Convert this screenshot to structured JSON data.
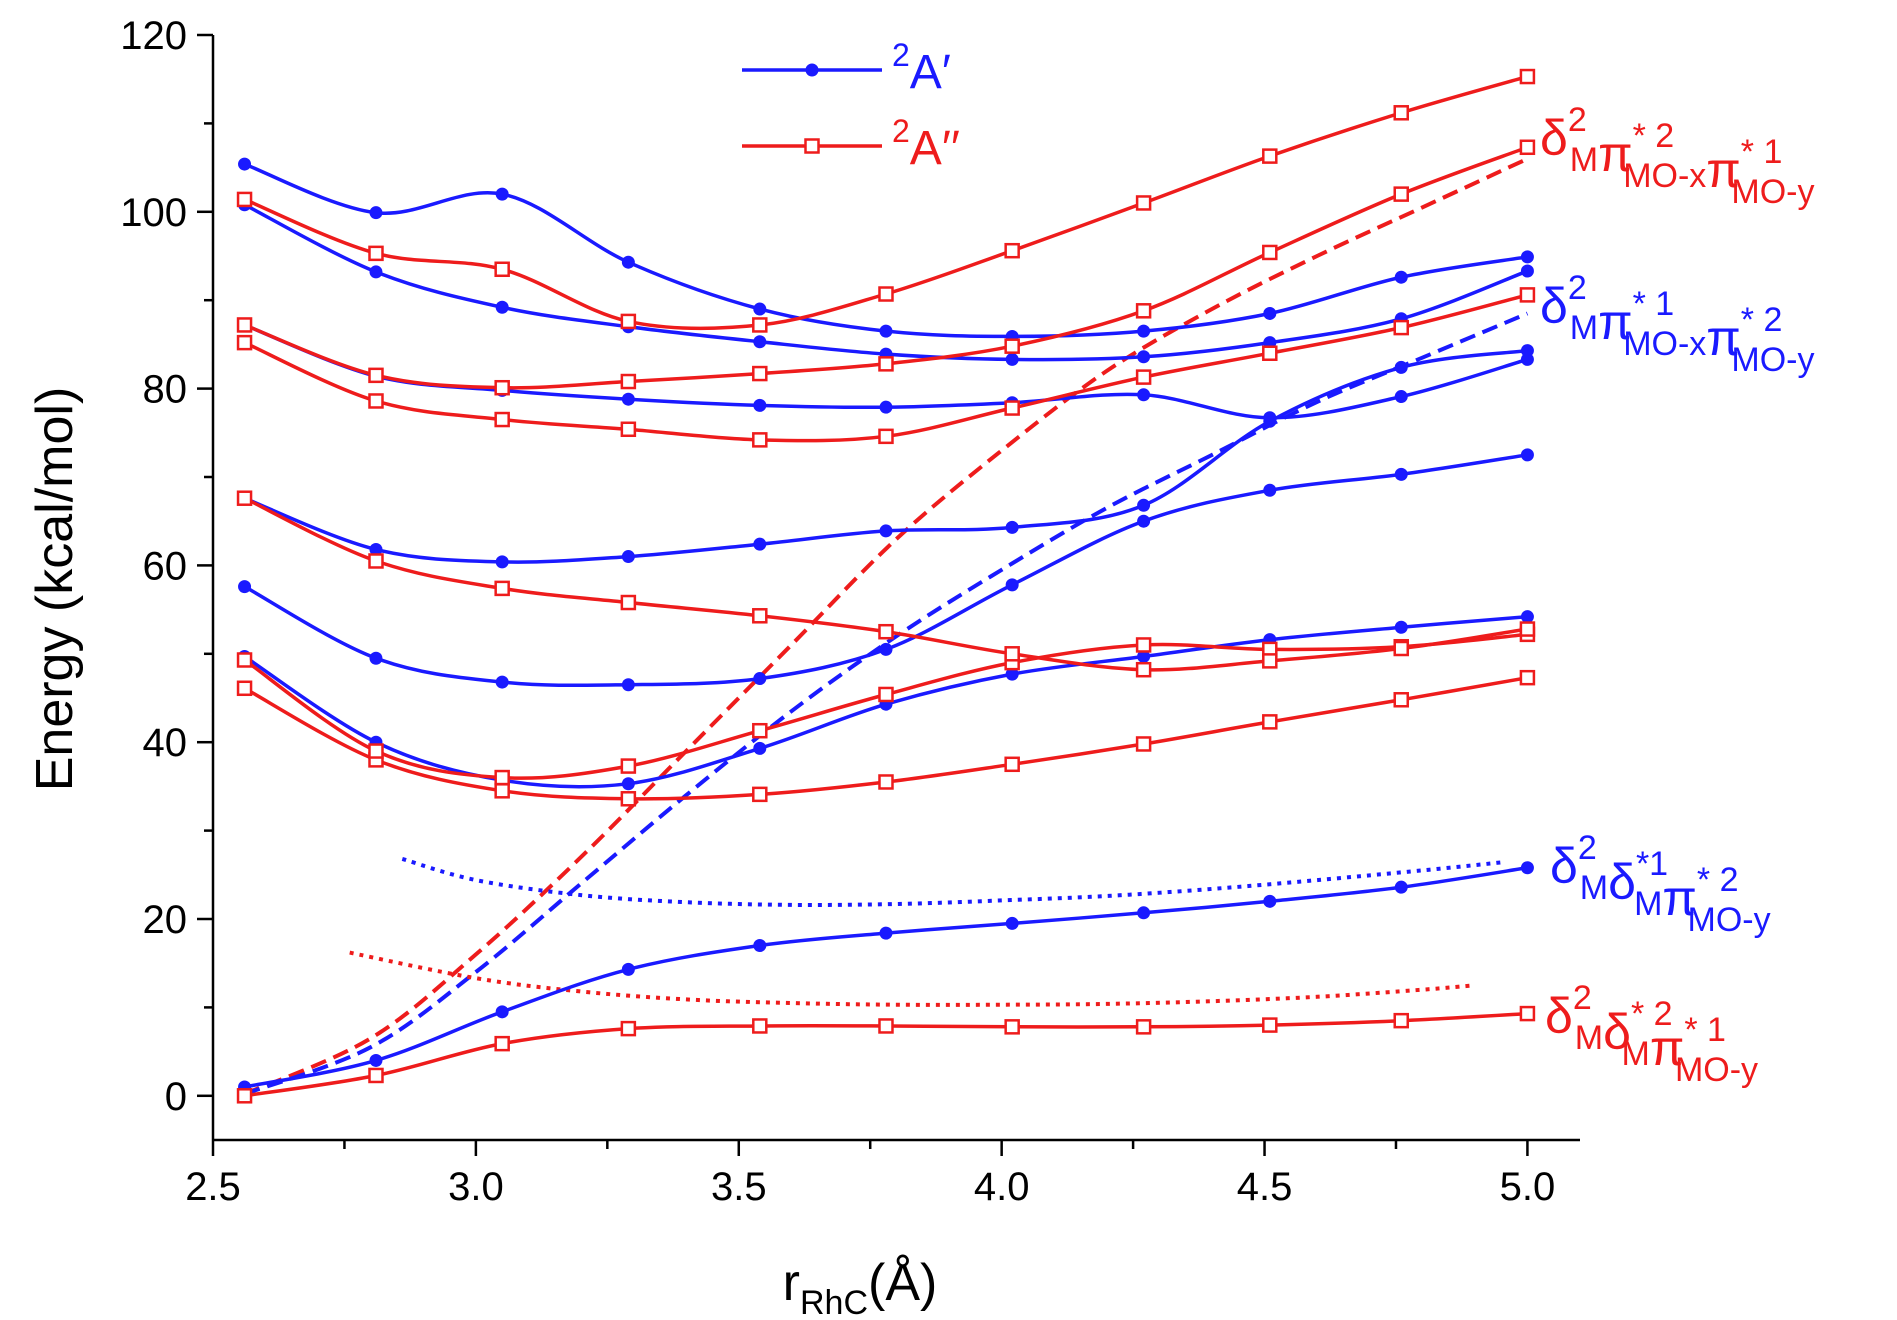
{
  "chart_data": {
    "type": "line",
    "title": "",
    "xlabel": {
      "main": "r",
      "sub": "RhC",
      "unit": "(Å)"
    },
    "ylabel": "Energy (kcal/mol)",
    "xlim": [
      2.5,
      5.1
    ],
    "ylim": [
      -5,
      120
    ],
    "xticks": [
      2.5,
      3.0,
      3.5,
      4.0,
      4.5,
      5.0
    ],
    "xtick_labels": [
      "2.5",
      "3.0",
      "3.5",
      "4.0",
      "4.5",
      "5.0"
    ],
    "yticks": [
      0,
      20,
      40,
      60,
      80,
      100,
      120
    ],
    "ytick_labels": [
      "0",
      "20",
      "40",
      "60",
      "80",
      "100",
      "120"
    ],
    "colors": {
      "a_prime": "#1a1aff",
      "a_double_prime": "#ee1c1c"
    },
    "legend": [
      {
        "label": "A′",
        "sup": "2",
        "color": "#1a1aff",
        "marker": "filled-circle"
      },
      {
        "label": "A′′",
        "sup": "2",
        "color": "#ee1c1c",
        "marker": "open-square"
      }
    ],
    "x": [
      2.56,
      2.81,
      3.05,
      3.29,
      3.54,
      3.78,
      4.02,
      4.27,
      4.51,
      4.76,
      5.0
    ],
    "series": [
      {
        "name": "2A' state 1",
        "group": "a_prime",
        "values": [
          1.0,
          4.0,
          9.5,
          14.3,
          17.0,
          18.4,
          19.5,
          20.7,
          22.0,
          23.6,
          25.8
        ]
      },
      {
        "name": "2A' state 2",
        "group": "a_prime",
        "values": [
          49.7,
          40.0,
          35.7,
          35.3,
          39.3,
          44.3,
          47.7,
          49.7,
          51.6,
          53.0,
          54.2
        ]
      },
      {
        "name": "2A' state 3",
        "group": "a_prime",
        "values": [
          57.6,
          49.5,
          46.8,
          46.5,
          47.2,
          50.5,
          57.8,
          65.0,
          68.5,
          70.3,
          72.5
        ]
      },
      {
        "name": "2A' state 4",
        "group": "a_prime",
        "values": [
          67.6,
          61.8,
          60.4,
          61.0,
          62.4,
          63.9,
          64.3,
          66.8,
          76.3,
          82.4,
          84.3
        ]
      },
      {
        "name": "2A' state 5",
        "group": "a_prime",
        "values": [
          87.2,
          81.4,
          79.8,
          78.8,
          78.1,
          77.9,
          78.4,
          79.3,
          76.7,
          79.1,
          83.3
        ]
      },
      {
        "name": "2A' state 6",
        "group": "a_prime",
        "values": [
          100.8,
          93.2,
          89.2,
          87.0,
          85.3,
          83.9,
          83.3,
          83.6,
          85.2,
          87.9,
          93.3
        ]
      },
      {
        "name": "2A' state 7",
        "group": "a_prime",
        "values": [
          105.4,
          99.9,
          102.0,
          94.3,
          89.0,
          86.5,
          85.9,
          86.5,
          88.5,
          92.6,
          94.9
        ]
      },
      {
        "name": "2A'' state 1",
        "group": "a_double_prime",
        "values": [
          0.0,
          2.3,
          5.9,
          7.6,
          7.9,
          7.9,
          7.8,
          7.8,
          8.0,
          8.5,
          9.3
        ]
      },
      {
        "name": "2A'' state 2",
        "group": "a_double_prime",
        "values": [
          46.1,
          38.0,
          34.5,
          33.6,
          34.1,
          35.5,
          37.5,
          39.8,
          42.3,
          44.8,
          47.3
        ]
      },
      {
        "name": "2A'' state 3",
        "group": "a_double_prime",
        "values": [
          49.3,
          39.0,
          36.0,
          37.3,
          41.3,
          45.4,
          49.0,
          51.0,
          50.5,
          50.8,
          52.2
        ]
      },
      {
        "name": "2A'' state 4",
        "group": "a_double_prime",
        "values": [
          67.6,
          60.5,
          57.4,
          55.8,
          54.3,
          52.5,
          50.0,
          48.2,
          49.2,
          50.6,
          52.8
        ]
      },
      {
        "name": "2A'' state 5",
        "group": "a_double_prime",
        "values": [
          85.2,
          78.6,
          76.5,
          75.4,
          74.2,
          74.6,
          77.8,
          81.3,
          84.0,
          86.9,
          90.6
        ]
      },
      {
        "name": "2A'' state 6",
        "group": "a_double_prime",
        "values": [
          87.2,
          81.5,
          80.1,
          80.8,
          81.7,
          82.8,
          84.8,
          88.8,
          95.4,
          102.0,
          107.3
        ]
      },
      {
        "name": "2A'' state 7",
        "group": "a_double_prime",
        "values": [
          101.4,
          95.3,
          93.5,
          87.6,
          87.2,
          90.7,
          95.6,
          101.0,
          106.3,
          111.2,
          115.3
        ]
      }
    ],
    "reference_curves": [
      {
        "name": "red dashed diabat",
        "group": "a_double_prime",
        "style": "dashed",
        "x": [
          2.56,
          2.8,
          3.0,
          3.2,
          3.4,
          3.6,
          3.8,
          4.0,
          4.2,
          4.4,
          4.6,
          4.8,
          5.0
        ],
        "y": [
          0.2,
          6.5,
          16,
          27,
          39,
          51,
          63,
          73,
          82,
          89,
          95,
          100.5,
          106
        ]
      },
      {
        "name": "blue dashed diabat",
        "group": "a_prime",
        "style": "dashed",
        "x": [
          2.56,
          2.8,
          3.0,
          3.2,
          3.4,
          3.6,
          3.8,
          4.0,
          4.2,
          4.4,
          4.6,
          4.8,
          5.0
        ],
        "y": [
          0.2,
          5.5,
          14,
          24,
          34,
          43.5,
          52,
          59.5,
          66.5,
          72.5,
          78.5,
          83.5,
          88.5
        ]
      },
      {
        "name": "blue dotted curve",
        "group": "a_prime",
        "style": "dotted",
        "x": [
          2.86,
          3.0,
          3.2,
          3.4,
          3.6,
          3.8,
          4.0,
          4.2,
          4.4,
          4.6,
          4.8,
          4.95
        ],
        "y": [
          26.8,
          24.4,
          22.7,
          21.9,
          21.6,
          21.7,
          22.1,
          22.6,
          23.4,
          24.4,
          25.5,
          26.4
        ]
      },
      {
        "name": "red dotted curve",
        "group": "a_double_prime",
        "style": "dotted",
        "x": [
          2.76,
          3.0,
          3.2,
          3.4,
          3.6,
          3.8,
          4.0,
          4.2,
          4.4,
          4.6,
          4.8,
          4.9
        ],
        "y": [
          16.2,
          13.3,
          11.8,
          10.9,
          10.5,
          10.3,
          10.3,
          10.4,
          10.7,
          11.2,
          12.0,
          12.5
        ]
      }
    ],
    "annotations": [
      {
        "group": "a_double_prime",
        "parts": [
          {
            "t": "δ",
            "sup": "2",
            "sub": "M"
          },
          {
            "t": "π",
            "sup": "* 2",
            "sub": "MO-x"
          },
          {
            "t": "π",
            "sup": "* 1",
            "sub": "MO-y"
          }
        ]
      },
      {
        "group": "a_prime",
        "parts": [
          {
            "t": "δ",
            "sup": "2",
            "sub": "M"
          },
          {
            "t": "π",
            "sup": "* 1",
            "sub": "MO-x"
          },
          {
            "t": "π",
            "sup": "* 2",
            "sub": "MO-y"
          }
        ]
      },
      {
        "group": "a_prime",
        "parts": [
          {
            "t": "δ",
            "sup": "2",
            "sub": "M"
          },
          {
            "t": "δ",
            "sup": "*1",
            "sub": "M"
          },
          {
            "t": "π",
            "sup": "* 2",
            "sub": "MO-y"
          }
        ]
      },
      {
        "group": "a_double_prime",
        "parts": [
          {
            "t": "δ",
            "sup": "2",
            "sub": "M"
          },
          {
            "t": "δ",
            "sup": "* 2",
            "sub": "M"
          },
          {
            "t": "π",
            "sup": "* 1",
            "sub": "MO-y"
          }
        ]
      }
    ]
  }
}
